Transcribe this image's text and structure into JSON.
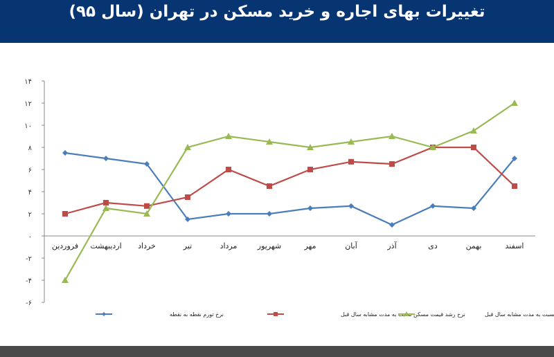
{
  "chart_data": {
    "type": "line",
    "title": "تغییرات بهای اجاره و خرید مسکن در تهران (سال ۹۵)",
    "categories": [
      "فروردین",
      "اردیبهشت",
      "خرداد",
      "تیر",
      "مرداد",
      "شهریور",
      "مهر",
      "آبان",
      "آذر",
      "دی",
      "بهمن",
      "اسفند"
    ],
    "ylim": [
      -6,
      14
    ],
    "yticks": [
      14,
      12,
      10,
      8,
      6,
      4,
      2,
      0,
      -2,
      -4,
      -6
    ],
    "ytick_labels": [
      "۱۴",
      "۱۲",
      "۱۰",
      "۸",
      "۶",
      "۴",
      "۲",
      "۰",
      "-۲",
      "-۴",
      "-۶"
    ],
    "grid": false,
    "legend_position": "bottom",
    "series": [
      {
        "name": "نرخ تورم نقطه به نقطه",
        "color": "#4a7ebb",
        "marker": "diamond",
        "values": [
          7.5,
          7,
          6.5,
          1.5,
          2,
          2,
          2.5,
          2.7,
          1,
          2.7,
          2.5,
          7
        ]
      },
      {
        "name": "نرخ رشد قیمت مسکن نسبت به مدت مشابه سال قبل",
        "color": "#be4b48",
        "marker": "square",
        "values": [
          2,
          3,
          2.7,
          3.5,
          6,
          4.5,
          6,
          6.7,
          6.5,
          8,
          8,
          4.5
        ]
      },
      {
        "name": "نرخ رشد اجاره‌بها نسبت به مدت مشابه سال قبل",
        "color": "#98b954",
        "marker": "triangle",
        "values": [
          -4,
          2.5,
          2,
          8,
          9,
          8.5,
          8,
          8.5,
          9,
          8,
          9.5,
          12
        ]
      }
    ]
  }
}
